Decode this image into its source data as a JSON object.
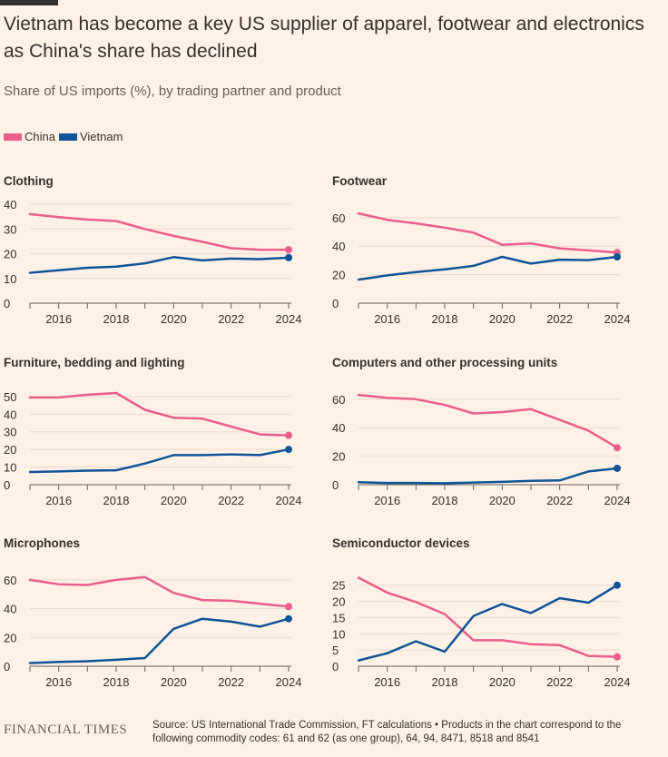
{
  "title": "Vietnam has become a key US supplier of apparel, footwear and electronics as China's share has declined",
  "subtitle": "Share of US imports (%), by trading partner and product",
  "legend": [
    {
      "name": "China",
      "color": "#eb5e8d"
    },
    {
      "name": "Vietnam",
      "color": "#0f5499"
    }
  ],
  "footer": {
    "logo": "FINANCIAL TIMES",
    "source": "Source: US International Trade Commission, FT calculations • Products in the chart correspond to the following commodity codes: 61 and 62 (as one group), 64, 94, 8471, 8518 and 8541"
  },
  "chart_data": [
    {
      "type": "line",
      "title": "Clothing",
      "x": [
        2015,
        2016,
        2017,
        2018,
        2019,
        2020,
        2021,
        2022,
        2023,
        2024
      ],
      "xticks": [
        2016,
        2018,
        2020,
        2022,
        2024
      ],
      "ylim": [
        0,
        40
      ],
      "yticks": [
        0,
        10,
        20,
        30,
        40
      ],
      "series": [
        {
          "name": "China",
          "values": [
            36,
            34.8,
            33.8,
            33.2,
            30,
            27.2,
            24.8,
            22.2,
            21.6,
            21.6
          ]
        },
        {
          "name": "Vietnam",
          "values": [
            12.3,
            13.3,
            14.3,
            14.8,
            16.1,
            18.6,
            17.3,
            18,
            17.8,
            18.4
          ]
        }
      ]
    },
    {
      "type": "line",
      "title": "Footwear",
      "x": [
        2015,
        2016,
        2017,
        2018,
        2019,
        2020,
        2021,
        2022,
        2023,
        2024
      ],
      "xticks": [
        2016,
        2018,
        2020,
        2022,
        2024
      ],
      "ylim": [
        0,
        65
      ],
      "yticks": [
        0,
        20,
        40,
        60
      ],
      "series": [
        {
          "name": "China",
          "values": [
            63,
            58.5,
            56,
            53,
            49.5,
            41,
            42,
            38.5,
            37,
            35.5
          ]
        },
        {
          "name": "Vietnam",
          "values": [
            16.5,
            19.5,
            21.8,
            23.7,
            26.2,
            32.5,
            27.8,
            30.5,
            30.2,
            32.5
          ]
        }
      ]
    },
    {
      "type": "line",
      "title": "Furniture, bedding and lighting",
      "x": [
        2015,
        2016,
        2017,
        2018,
        2019,
        2020,
        2021,
        2022,
        2023,
        2024
      ],
      "xticks": [
        2016,
        2018,
        2020,
        2022,
        2024
      ],
      "ylim": [
        0,
        52
      ],
      "yticks": [
        0,
        10,
        20,
        30,
        40,
        50
      ],
      "series": [
        {
          "name": "China",
          "values": [
            49.5,
            49.5,
            51,
            52,
            42.5,
            38,
            37.5,
            33,
            28.5,
            28
          ]
        },
        {
          "name": "Vietnam",
          "values": [
            7.2,
            7.5,
            8,
            8.2,
            12,
            16.8,
            16.8,
            17.2,
            16.8,
            20
          ]
        }
      ]
    },
    {
      "type": "line",
      "title": "Computers and other processing units",
      "x": [
        2015,
        2016,
        2017,
        2018,
        2019,
        2020,
        2021,
        2022,
        2023,
        2024
      ],
      "xticks": [
        2016,
        2018,
        2020,
        2022,
        2024
      ],
      "ylim": [
        0,
        65
      ],
      "yticks": [
        0,
        20,
        40,
        60
      ],
      "series": [
        {
          "name": "China",
          "values": [
            63,
            61,
            60,
            56,
            50,
            51,
            53,
            45.5,
            38,
            26
          ]
        },
        {
          "name": "Vietnam",
          "values": [
            1.7,
            1.2,
            1.2,
            1,
            1.5,
            2,
            2.7,
            3,
            9.3,
            11.5
          ]
        }
      ]
    },
    {
      "type": "line",
      "title": "Microphones",
      "x": [
        2015,
        2016,
        2017,
        2018,
        2019,
        2020,
        2021,
        2022,
        2023,
        2024
      ],
      "xticks": [
        2016,
        2018,
        2020,
        2022,
        2024
      ],
      "ylim": [
        0,
        65
      ],
      "yticks": [
        0,
        20,
        40,
        60
      ],
      "series": [
        {
          "name": "China",
          "values": [
            60,
            57,
            56.5,
            60,
            62,
            51,
            46,
            45.5,
            43.5,
            41.5
          ]
        },
        {
          "name": "Vietnam",
          "values": [
            2.2,
            3,
            3.5,
            4.5,
            5.7,
            26,
            33,
            31,
            27.5,
            33
          ]
        }
      ]
    },
    {
      "type": "line",
      "title": "Semiconductor devices",
      "x": [
        2015,
        2016,
        2017,
        2018,
        2019,
        2020,
        2021,
        2022,
        2023,
        2024
      ],
      "xticks": [
        2016,
        2018,
        2020,
        2022,
        2024
      ],
      "ylim": [
        0,
        28
      ],
      "yticks": [
        0,
        5,
        10,
        15,
        20,
        25
      ],
      "series": [
        {
          "name": "China",
          "values": [
            27.3,
            22.7,
            19.8,
            16.1,
            8,
            8,
            6.8,
            6.5,
            3.2,
            2.9
          ]
        },
        {
          "name": "Vietnam",
          "values": [
            1.8,
            4,
            7.7,
            4.5,
            15.5,
            19.2,
            16.4,
            21,
            19.6,
            25
          ]
        }
      ]
    }
  ]
}
